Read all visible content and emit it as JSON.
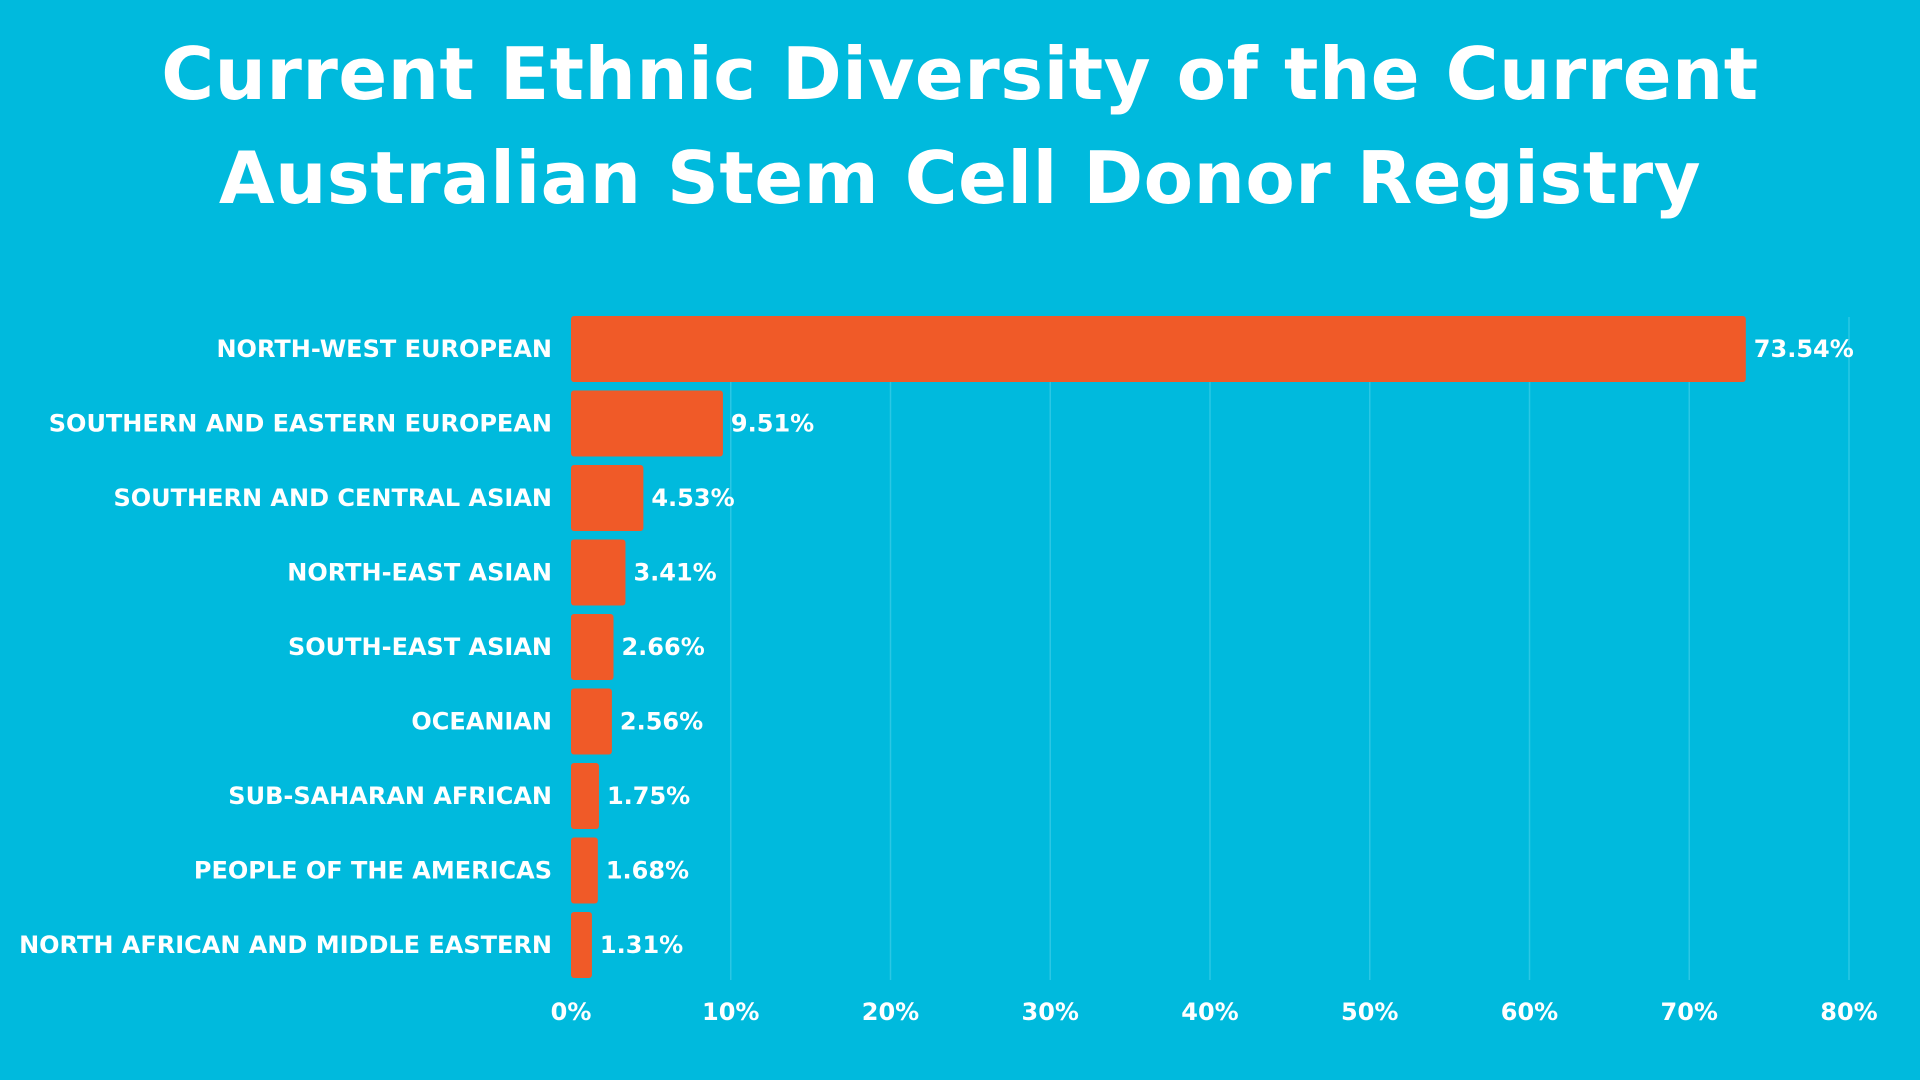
{
  "page": {
    "title_lines": [
      "Current Ethnic Diversity of the Current",
      "Australian Stem Cell Donor Registry"
    ]
  },
  "colors": {
    "background": "#00BADD",
    "bar": "#F05A28",
    "text": "#FFFFFF",
    "grid": "#2BC7E4"
  },
  "chart_data": {
    "type": "bar",
    "orientation": "horizontal",
    "title": "Current Ethnic Diversity of the Current Australian Stem Cell Donor Registry",
    "xlabel": "",
    "ylabel": "",
    "categories": [
      "NORTH-WEST EUROPEAN",
      "SOUTHERN AND EASTERN EUROPEAN",
      "SOUTHERN AND CENTRAL ASIAN",
      "NORTH-EAST ASIAN",
      "SOUTH-EAST ASIAN",
      "OCEANIAN",
      "SUB-SAHARAN AFRICAN",
      "PEOPLE OF THE AMERICAS",
      "NORTH AFRICAN AND MIDDLE EASTERN"
    ],
    "values": [
      73.54,
      9.51,
      4.53,
      3.41,
      2.66,
      2.56,
      1.75,
      1.68,
      1.31
    ],
    "value_labels": [
      "73.54%",
      "9.51%",
      "4.53%",
      "3.41%",
      "2.66%",
      "2.56%",
      "1.75%",
      "1.68%",
      "1.31%"
    ],
    "xlim": [
      0,
      80
    ],
    "x_ticks": [
      0,
      10,
      20,
      30,
      40,
      50,
      60,
      70,
      80
    ],
    "x_tick_labels": [
      "0%",
      "10%",
      "20%",
      "30%",
      "40%",
      "50%",
      "60%",
      "70%",
      "80%"
    ],
    "grid": true,
    "legend": false
  }
}
